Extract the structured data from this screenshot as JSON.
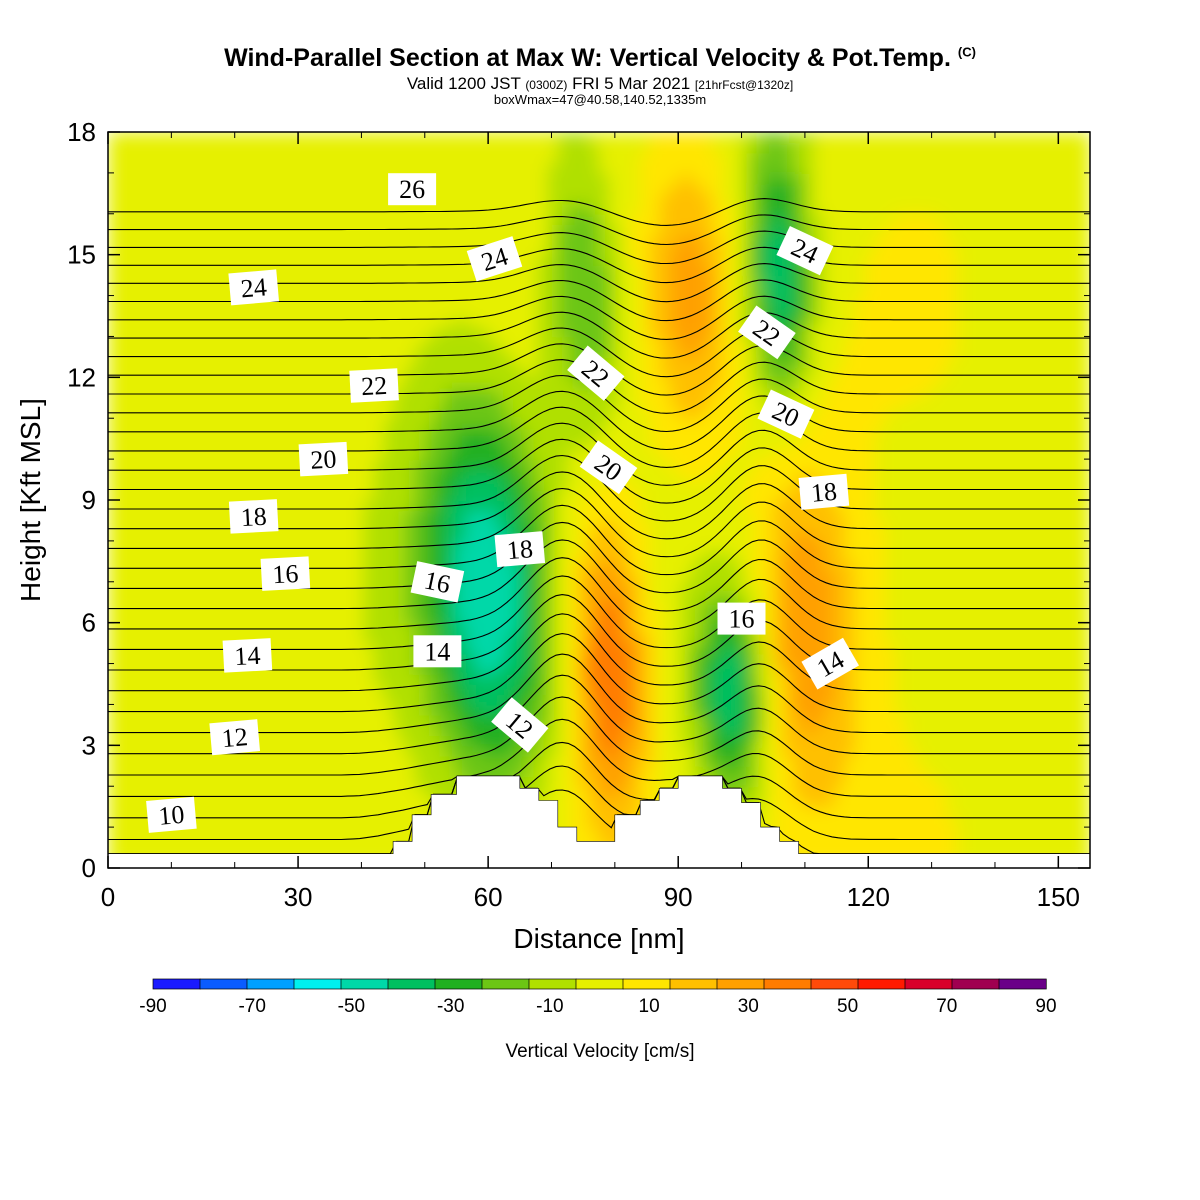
{
  "header": {
    "title": "Wind-Parallel Section at Max W: Vertical Velocity & Pot.Temp.",
    "title_mark": "(C)",
    "valid_prefix": "Valid 1200 JST",
    "valid_utc": "(0300Z)",
    "valid_date": "FRI 5 Mar 2021",
    "forecast_info": "[21hrFcst@1320z]",
    "box_info": "boxWmax=47@40.58,140.52,1335m"
  },
  "chart_data": {
    "type": "heatmap",
    "xlabel": "Distance [nm]",
    "ylabel": "Height [Kft MSL]",
    "xlim": [
      0,
      155
    ],
    "ylim": [
      0,
      18
    ],
    "xticks": [
      "0",
      "30",
      "60",
      "90",
      "120",
      "150"
    ],
    "yticks": [
      "0",
      "3",
      "6",
      "9",
      "12",
      "15",
      "18"
    ],
    "colorbar": {
      "label": "Vertical Velocity [cm/s]",
      "tick_labels": [
        "-90",
        "-70",
        "-50",
        "-30",
        "-10",
        "10",
        "30",
        "50",
        "70",
        "90"
      ],
      "bounds": [
        -90,
        -80,
        -70,
        -60,
        -50,
        -40,
        -30,
        -20,
        -10,
        0,
        10,
        20,
        30,
        40,
        50,
        60,
        70,
        80,
        90
      ],
      "colors": [
        "#1a1aff",
        "#0a5cff",
        "#00a0ff",
        "#00f0ee",
        "#00d8a8",
        "#00c060",
        "#20b020",
        "#6cc614",
        "#b0e000",
        "#e6f000",
        "#ffe600",
        "#ffc000",
        "#ffa000",
        "#ff7c00",
        "#ff4a0a",
        "#ff1a00",
        "#d8002a",
        "#a00050",
        "#6a0088"
      ]
    },
    "vertical_velocity_features": [
      {
        "kind": "downdraft",
        "x": [
          48,
          72
        ],
        "y": [
          1.5,
          12
        ],
        "min_value": -55
      },
      {
        "kind": "updraft",
        "x": [
          72,
          86
        ],
        "y": [
          0.8,
          9
        ],
        "max_value": 45
      },
      {
        "kind": "downdraft",
        "x": [
          92,
          105
        ],
        "y": [
          1.5,
          7
        ],
        "min_value": -45
      },
      {
        "kind": "updraft",
        "x": [
          100,
          120
        ],
        "y": [
          1,
          11
        ],
        "max_value": 35
      },
      {
        "kind": "downdraft",
        "x": [
          68,
          82
        ],
        "y": [
          10,
          18
        ],
        "min_value": -30
      },
      {
        "kind": "downdraft",
        "x": [
          100,
          112
        ],
        "y": [
          11,
          18
        ],
        "min_value": -45
      },
      {
        "kind": "updraft",
        "x": [
          84,
          100
        ],
        "y": [
          10,
          18
        ],
        "max_value": 30
      }
    ],
    "terrain": {
      "x": [
        0,
        45,
        45,
        48,
        48,
        51,
        51,
        55,
        55,
        58,
        58,
        65,
        65,
        68,
        68,
        71,
        71,
        74,
        74,
        80,
        80,
        84,
        84,
        87,
        87,
        90,
        90,
        97,
        97,
        100,
        100,
        103,
        103,
        106,
        106,
        109,
        109,
        155
      ],
      "y": [
        0.35,
        0.35,
        0.65,
        0.65,
        1.3,
        1.3,
        1.8,
        1.8,
        2.25,
        2.25,
        2.25,
        2.25,
        1.95,
        1.95,
        1.65,
        1.65,
        1.0,
        1.0,
        0.65,
        0.65,
        1.3,
        1.3,
        1.65,
        1.65,
        1.95,
        1.95,
        2.25,
        2.25,
        1.95,
        1.95,
        1.6,
        1.6,
        1.0,
        1.0,
        0.65,
        0.65,
        0.35,
        0.35
      ]
    },
    "theta_contours": {
      "levels": [
        10,
        10.5,
        11,
        11.5,
        12,
        12.5,
        13,
        13.5,
        14,
        14.5,
        15,
        15.5,
        16,
        16.5,
        17,
        17.5,
        18,
        18.5,
        19,
        19.5,
        20,
        20.5,
        21,
        21.5,
        22,
        22.5,
        23,
        23.5,
        24,
        24.5,
        25,
        25.5,
        26,
        26.5
      ],
      "labels": [
        {
          "text": "10",
          "x": 10,
          "y": 1.3,
          "rot": -5
        },
        {
          "text": "12",
          "x": 20,
          "y": 3.2,
          "rot": -5
        },
        {
          "text": "14",
          "x": 22,
          "y": 5.2,
          "rot": -3
        },
        {
          "text": "16",
          "x": 28,
          "y": 7.2,
          "rot": -3
        },
        {
          "text": "18",
          "x": 23,
          "y": 8.6,
          "rot": -3
        },
        {
          "text": "20",
          "x": 34,
          "y": 10.0,
          "rot": -3
        },
        {
          "text": "22",
          "x": 42,
          "y": 11.8,
          "rot": -3
        },
        {
          "text": "24",
          "x": 23,
          "y": 14.2,
          "rot": -5
        },
        {
          "text": "26",
          "x": 48,
          "y": 16.6,
          "rot": 0
        },
        {
          "text": "24",
          "x": 61,
          "y": 14.9,
          "rot": -18
        },
        {
          "text": "16",
          "x": 52,
          "y": 7.0,
          "rot": 12
        },
        {
          "text": "14",
          "x": 52,
          "y": 5.3,
          "rot": 0
        },
        {
          "text": "12",
          "x": 65,
          "y": 3.5,
          "rot": 40
        },
        {
          "text": "18",
          "x": 65,
          "y": 7.8,
          "rot": -5
        },
        {
          "text": "22",
          "x": 77,
          "y": 12.1,
          "rot": 40
        },
        {
          "text": "20",
          "x": 79,
          "y": 9.8,
          "rot": 35
        },
        {
          "text": "16",
          "x": 100,
          "y": 6.1,
          "rot": 0
        },
        {
          "text": "22",
          "x": 104,
          "y": 13.1,
          "rot": 35
        },
        {
          "text": "20",
          "x": 107,
          "y": 11.1,
          "rot": 25
        },
        {
          "text": "18",
          "x": 113,
          "y": 9.2,
          "rot": -5
        },
        {
          "text": "24",
          "x": 110,
          "y": 15.1,
          "rot": 25
        },
        {
          "text": "14",
          "x": 114,
          "y": 5.0,
          "rot": -30
        }
      ]
    }
  }
}
